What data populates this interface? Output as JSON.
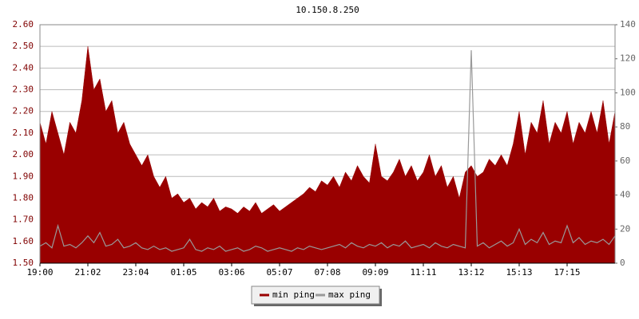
{
  "chart_data": {
    "type": "area-line",
    "title": "10.150.8.250",
    "categories": [
      "19:00",
      null,
      null,
      null,
      null,
      null,
      null,
      null,
      "21:02",
      null,
      null,
      null,
      null,
      null,
      null,
      null,
      "23:04",
      null,
      null,
      null,
      null,
      null,
      null,
      null,
      "01:05",
      null,
      null,
      null,
      null,
      null,
      null,
      null,
      "03:06",
      null,
      null,
      null,
      null,
      null,
      null,
      null,
      "05:07",
      null,
      null,
      null,
      null,
      null,
      null,
      null,
      "07:08",
      null,
      null,
      null,
      null,
      null,
      null,
      null,
      "09:09",
      null,
      null,
      null,
      null,
      null,
      null,
      null,
      "11:11",
      null,
      null,
      null,
      null,
      null,
      null,
      null,
      "13:12",
      null,
      null,
      null,
      null,
      null,
      null,
      null,
      "15:13",
      null,
      null,
      null,
      null,
      null,
      null,
      null,
      "17:15",
      null,
      null,
      null,
      null,
      null,
      null,
      null,
      null
    ],
    "series": [
      {
        "name": "min ping",
        "color": "#990000",
        "axis": "y",
        "values": [
          2.15,
          2.05,
          2.2,
          2.1,
          2.0,
          2.15,
          2.1,
          2.25,
          2.5,
          2.3,
          2.35,
          2.2,
          2.25,
          2.1,
          2.15,
          2.05,
          2.0,
          1.95,
          2.0,
          1.9,
          1.85,
          1.9,
          1.8,
          1.82,
          1.78,
          1.8,
          1.75,
          1.78,
          1.76,
          1.8,
          1.74,
          1.76,
          1.75,
          1.73,
          1.76,
          1.74,
          1.78,
          1.73,
          1.75,
          1.77,
          1.74,
          1.76,
          1.78,
          1.8,
          1.82,
          1.85,
          1.83,
          1.88,
          1.86,
          1.9,
          1.85,
          1.92,
          1.88,
          1.95,
          1.9,
          1.87,
          2.05,
          1.9,
          1.88,
          1.92,
          1.98,
          1.9,
          1.95,
          1.88,
          1.92,
          2.0,
          1.9,
          1.95,
          1.85,
          1.9,
          1.8,
          1.92,
          1.95,
          1.9,
          1.92,
          1.98,
          1.95,
          2.0,
          1.95,
          2.05,
          2.2,
          2.0,
          2.15,
          2.1,
          2.25,
          2.05,
          2.15,
          2.1,
          2.2,
          2.05,
          2.15,
          2.1,
          2.2,
          2.1,
          2.25,
          2.05,
          2.2
        ]
      },
      {
        "name": "max ping",
        "color": "#999999",
        "axis": "y2",
        "values": [
          10,
          12,
          9,
          22,
          10,
          11,
          9,
          12,
          16,
          12,
          18,
          10,
          11,
          14,
          9,
          10,
          12,
          9,
          8,
          10,
          8,
          9,
          7,
          8,
          9,
          14,
          8,
          7,
          9,
          8,
          10,
          7,
          8,
          9,
          7,
          8,
          10,
          9,
          7,
          8,
          9,
          8,
          7,
          9,
          8,
          10,
          9,
          8,
          9,
          10,
          11,
          9,
          12,
          10,
          9,
          11,
          10,
          12,
          9,
          11,
          10,
          13,
          9,
          10,
          11,
          9,
          12,
          10,
          9,
          11,
          10,
          9,
          125,
          10,
          12,
          9,
          11,
          13,
          10,
          12,
          20,
          11,
          14,
          12,
          18,
          11,
          13,
          12,
          22,
          12,
          15,
          11,
          13,
          12,
          14,
          11,
          16
        ]
      }
    ],
    "ylim": [
      1.5,
      2.6
    ],
    "yticks": [
      {
        "value": 1.5,
        "label": "1.50"
      },
      {
        "value": 1.6,
        "label": "1.60"
      },
      {
        "value": 1.7,
        "label": "1.70"
      },
      {
        "value": 1.8,
        "label": "1.80"
      },
      {
        "value": 1.9,
        "label": "1.90"
      },
      {
        "value": 2.0,
        "label": "2.00"
      },
      {
        "value": 2.1,
        "label": "2.10"
      },
      {
        "value": 2.2,
        "label": "2.20"
      },
      {
        "value": 2.3,
        "label": "2.30"
      },
      {
        "value": 2.4,
        "label": "2.40"
      },
      {
        "value": 2.5,
        "label": "2.50"
      },
      {
        "value": 2.6,
        "label": "2.60"
      }
    ],
    "y2lim": [
      0,
      140
    ],
    "y2ticks": [
      0,
      20,
      40,
      60,
      80,
      100,
      120,
      140
    ],
    "grid": true
  }
}
